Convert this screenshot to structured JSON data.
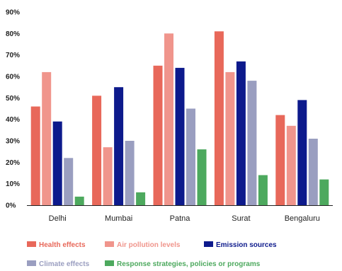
{
  "chart_data": {
    "type": "bar",
    "categories": [
      "Delhi",
      "Mumbai",
      "Patna",
      "Surat",
      "Bengaluru"
    ],
    "series": [
      {
        "name": "Health effects",
        "color": "#E8685A",
        "values": [
          46,
          51,
          65,
          81,
          42
        ]
      },
      {
        "name": "Air pollution levels",
        "color": "#F0958C",
        "values": [
          62,
          27,
          80,
          62,
          37
        ]
      },
      {
        "name": "Emission sources",
        "color": "#0D1A8C",
        "values": [
          39,
          55,
          64,
          67,
          49
        ]
      },
      {
        "name": "Climate effects",
        "color": "#9A9EC0",
        "values": [
          22,
          30,
          45,
          58,
          31
        ]
      },
      {
        "name": "Response strategies, policies or programs",
        "color": "#4DA95E",
        "values": [
          4,
          6,
          26,
          14,
          12
        ]
      }
    ],
    "yticks": [
      "0%",
      "10%",
      "20%",
      "30%",
      "40%",
      "50%",
      "60%",
      "70%",
      "80%",
      "90%"
    ],
    "ylim": [
      0,
      90
    ],
    "y_unit": "%",
    "grid": false,
    "legend_position": "bottom"
  }
}
